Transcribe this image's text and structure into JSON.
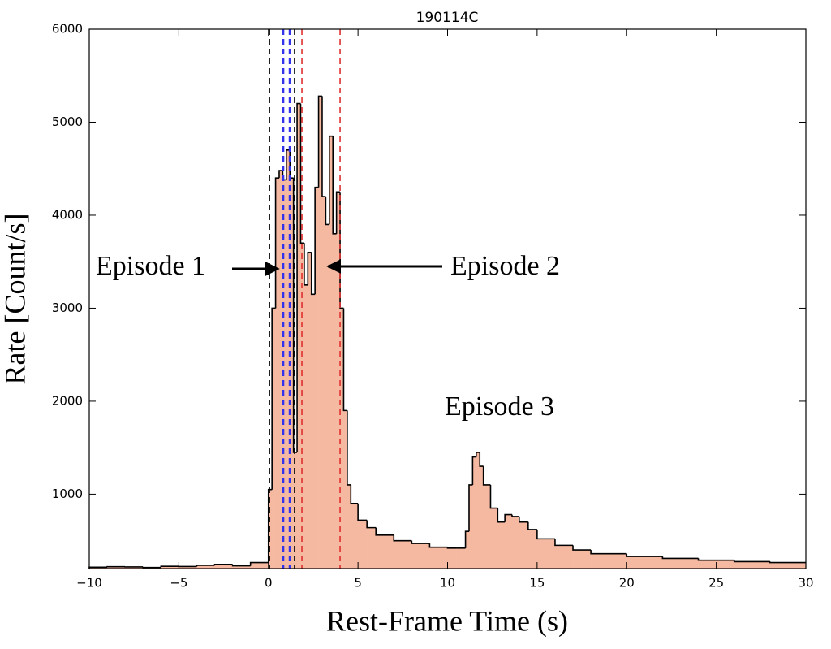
{
  "chart_data": {
    "type": "histogram",
    "title": "190114C",
    "xlabel": "Rest-Frame Time (s)",
    "ylabel": "Rate [Count/s]",
    "color": "#f5b9a1",
    "edgecolor": "#000000",
    "bins": [
      -10,
      -9,
      -8,
      -7,
      -6,
      -5,
      -4,
      -3,
      -2,
      -1,
      0,
      0.2,
      0.4,
      0.6,
      0.8,
      1.0,
      1.2,
      1.4,
      1.6,
      1.8,
      2.0,
      2.2,
      2.4,
      2.6,
      2.8,
      3.0,
      3.2,
      3.4,
      3.6,
      3.8,
      4.0,
      4.2,
      4.4,
      4.6,
      5,
      5.5,
      6,
      7,
      8,
      9,
      10,
      10.5,
      11,
      11.2,
      11.4,
      11.6,
      11.8,
      12,
      12.4,
      12.8,
      13.2,
      13.6,
      14,
      14.5,
      15,
      16,
      17,
      18,
      20,
      22,
      24,
      26,
      28,
      30
    ],
    "counts": [
      215,
      220,
      218,
      212,
      225,
      222,
      235,
      245,
      230,
      265,
      1050,
      3000,
      4400,
      4480,
      4380,
      4700,
      4400,
      1450,
      5200,
      3700,
      3250,
      3600,
      3150,
      4300,
      5280,
      4200,
      3900,
      4850,
      3800,
      4250,
      3000,
      1900,
      1100,
      900,
      720,
      640,
      560,
      500,
      470,
      430,
      420,
      420,
      600,
      1100,
      1400,
      1450,
      1300,
      1100,
      850,
      700,
      780,
      760,
      700,
      620,
      520,
      450,
      400,
      360,
      330,
      310,
      290,
      275,
      265
    ],
    "xlim": [
      -10,
      30
    ],
    "xticks": [
      {
        "value": -10,
        "label": "−10"
      },
      {
        "value": -5,
        "label": "−5"
      },
      0,
      5,
      10,
      15,
      20,
      25,
      30
    ],
    "ylim": [
      200,
      6000
    ],
    "yticks": [
      1000,
      2000,
      3000,
      4000,
      5000,
      6000
    ],
    "grid": false,
    "vlines": [
      {
        "x": 0.06,
        "color": "#000000"
      },
      {
        "x": 0.83,
        "color": "#3333ee"
      },
      {
        "x": 1.19,
        "color": "#3333ee"
      },
      {
        "x": 1.46,
        "color": "#000000"
      },
      {
        "x": 1.87,
        "color": "#e03030"
      },
      {
        "x": 4.0,
        "color": "#e03030"
      }
    ],
    "annotations": [
      "Episode 1",
      "Episode 2",
      "Episode 3"
    ]
  }
}
